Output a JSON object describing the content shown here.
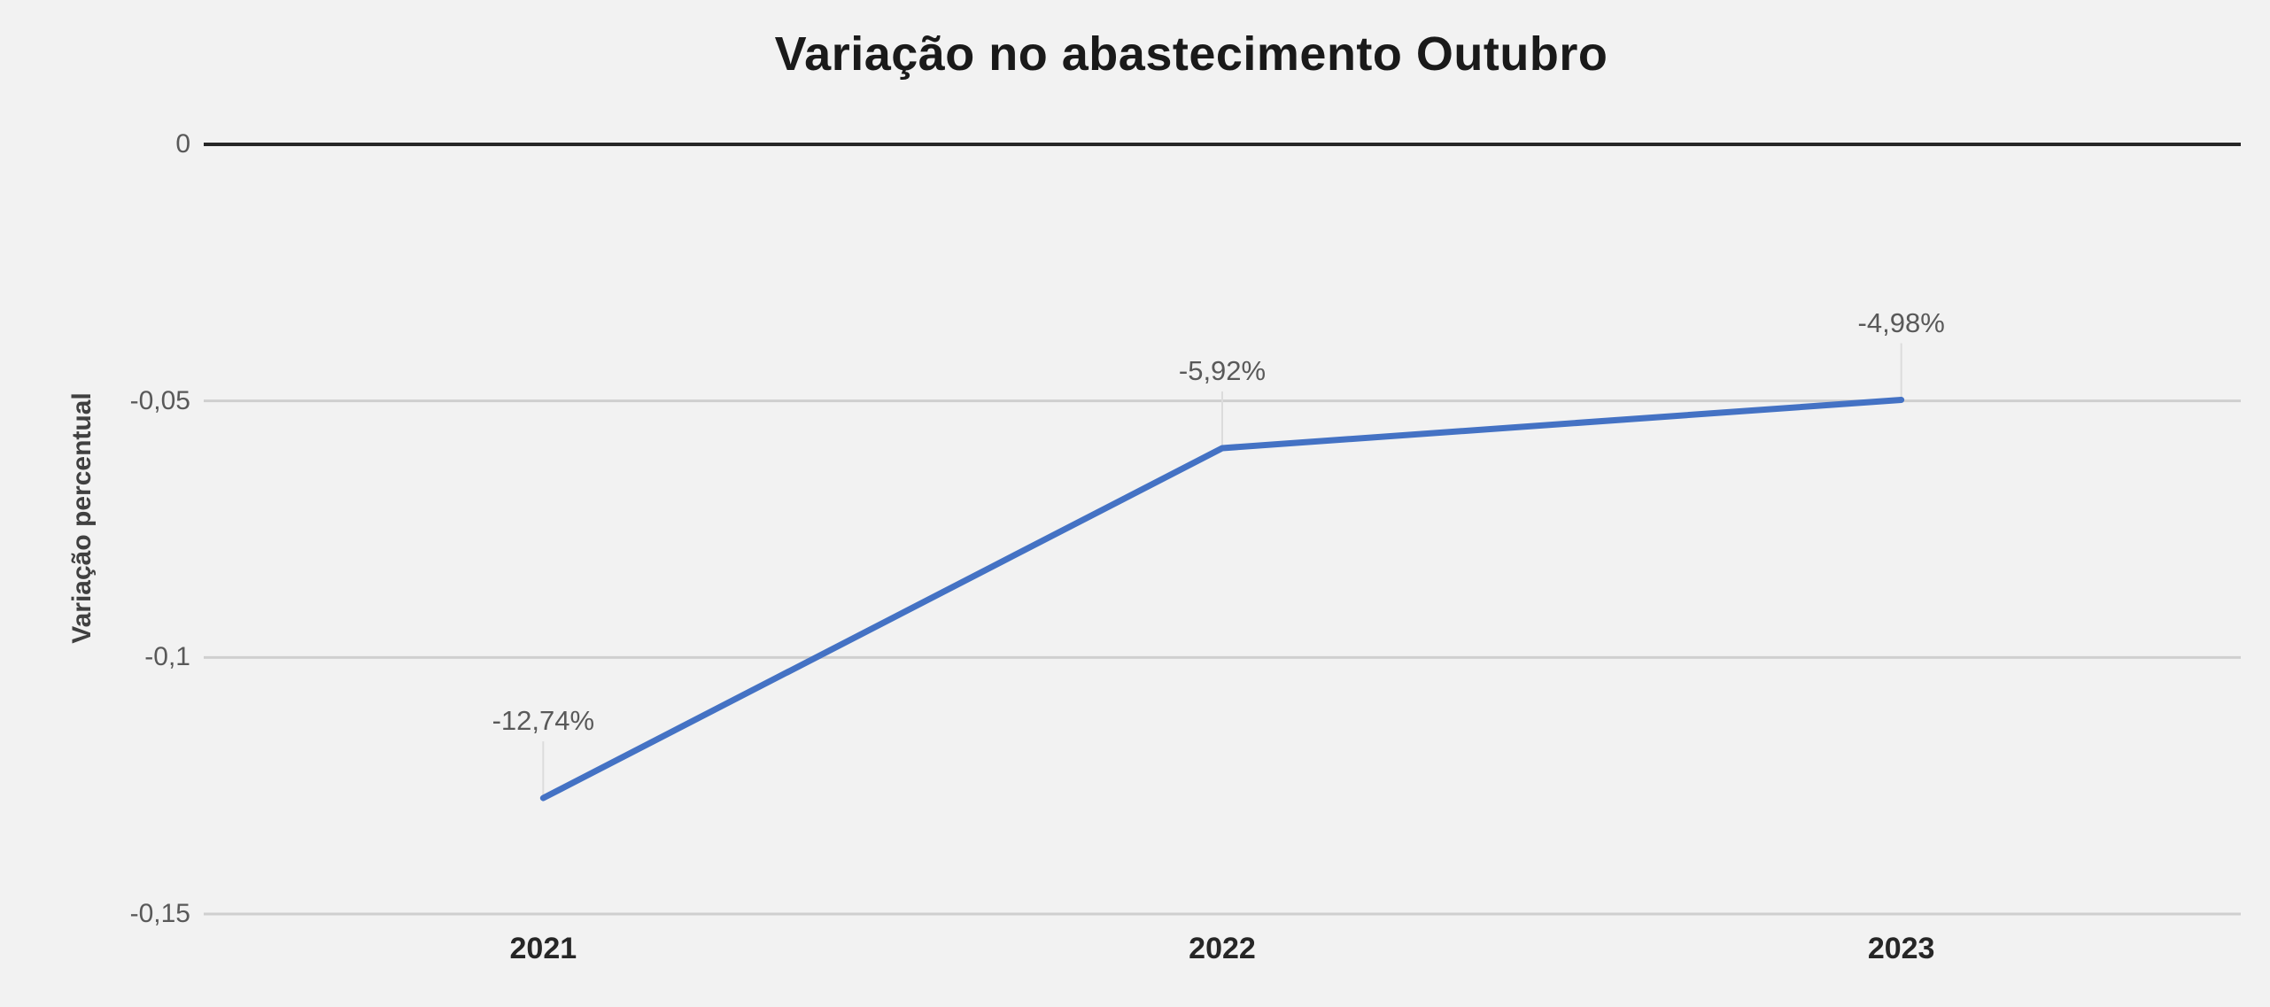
{
  "chart_data": {
    "type": "line",
    "title": "Variação no abastecimento Outubro",
    "xlabel": "",
    "ylabel": "Variação percentual",
    "categories": [
      "2021",
      "2022",
      "2023"
    ],
    "series": [
      {
        "values": [
          -0.1274,
          -0.0592,
          -0.0498
        ]
      }
    ],
    "data_labels": [
      "-12,74%",
      "-5,92%",
      "-4,98%"
    ],
    "ylim": [
      -0.15,
      0
    ],
    "yticks": [
      0,
      -0.05,
      -0.1,
      -0.15
    ],
    "ytick_labels": [
      "0",
      "-0,05",
      "-0,1",
      "-0,15"
    ],
    "grid": true,
    "legend": false,
    "colors": {
      "background": "#F2F2F2",
      "line": "#4472C4",
      "gridline": "#CFCFCF",
      "zero_axis": "#262626",
      "leader": "#DCDCDC",
      "title_text": "#1A1A1A",
      "tick_text": "#595959",
      "category_text": "#262626",
      "ylabel_text": "#404040",
      "data_label_text": "#595959"
    }
  }
}
